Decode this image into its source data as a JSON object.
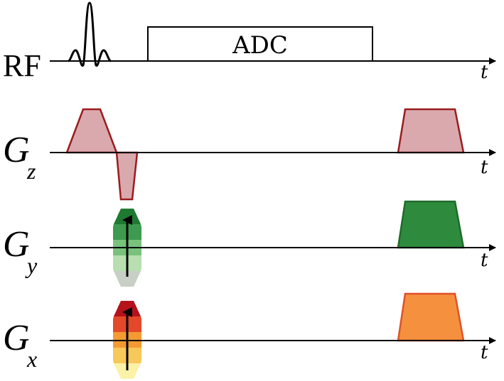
{
  "rows": [
    {
      "label": "RF",
      "subscript": "",
      "axis_label": "t"
    },
    {
      "label": "G",
      "subscript": "z",
      "axis_label": "t"
    },
    {
      "label": "G",
      "subscript": "y",
      "axis_label": "t"
    },
    {
      "label": "G",
      "subscript": "x",
      "axis_label": "t"
    }
  ],
  "adc_label": "ADC",
  "colors": {
    "gz_fill": "#d9a9ae",
    "gz_stroke": "#9b1c1c",
    "gy_fill": "#2e8b3e",
    "gy_stroke": "#1f6b2a",
    "gx_fill": "#f5913e",
    "gx_stroke": "#e0502a",
    "gy_phase_steps": [
      "#1e7a30",
      "#3e9a4e",
      "#78c27c",
      "#b7dfb0",
      "#c8cfc6"
    ],
    "gx_phase_steps": [
      "#b5121b",
      "#e4482a",
      "#f39a33",
      "#f7c85a",
      "#fbf2a8"
    ]
  }
}
